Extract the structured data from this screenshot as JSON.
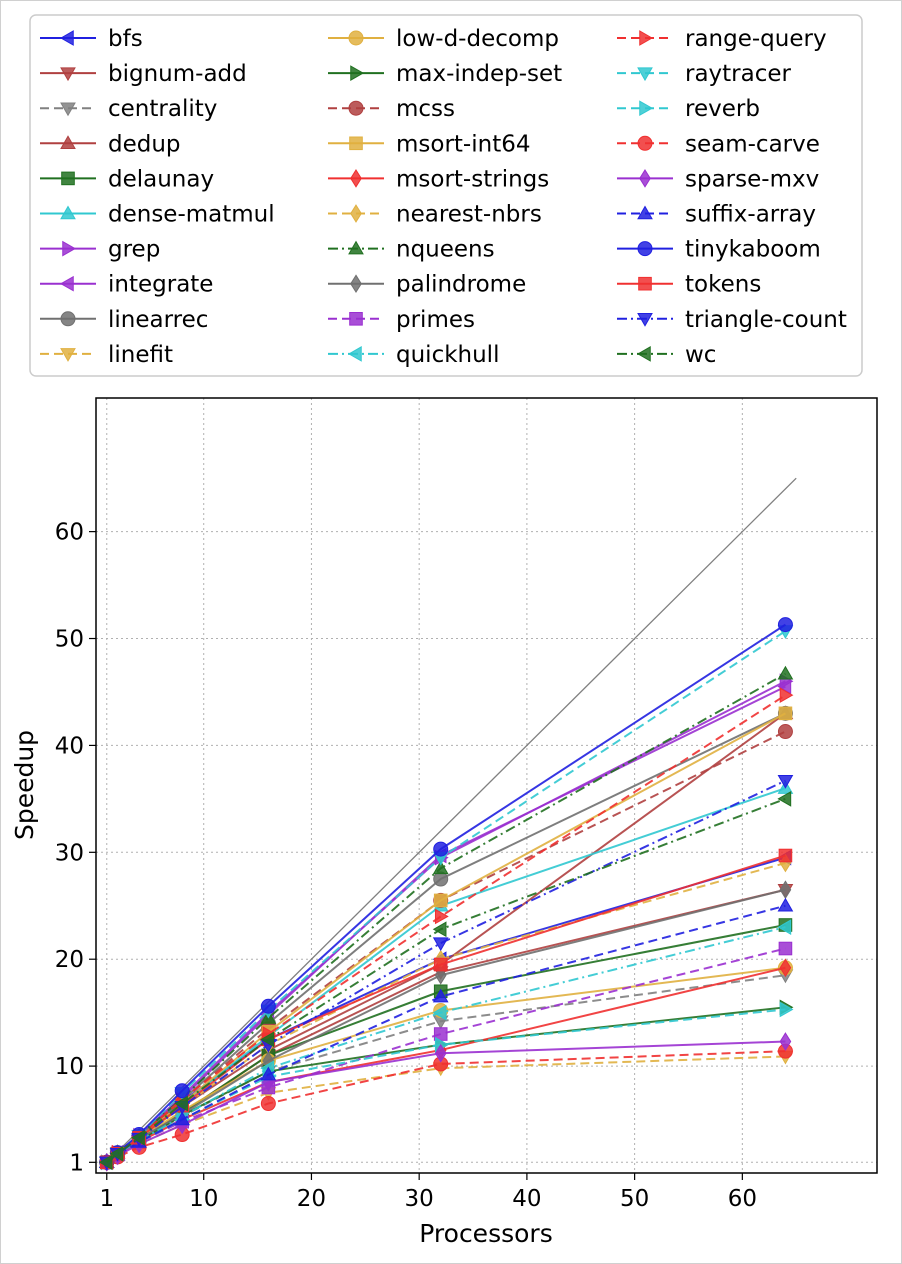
{
  "chart_data": {
    "type": "line",
    "title": "",
    "xlabel": "Processors",
    "ylabel": "Speedup",
    "xlim": [
      0,
      72.5
    ],
    "ylim": [
      0,
      72.5
    ],
    "xticks": [
      1,
      10,
      20,
      30,
      40,
      50,
      60
    ],
    "yticks": [
      1,
      10,
      20,
      30,
      40,
      50,
      60
    ],
    "grid": true,
    "legend_position": "top",
    "legend_columns": 3,
    "x": [
      1,
      2,
      4,
      8,
      16,
      32,
      64
    ],
    "ideal_line": {
      "x": [
        1,
        65
      ],
      "y": [
        1,
        65
      ],
      "color": "#808080"
    },
    "series": [
      {
        "name": "bfs",
        "color": "#2020e0",
        "dash": "solid",
        "marker": "tri-left",
        "values": [
          1,
          1.9,
          3.5,
          6.7,
          12.5,
          20,
          29.5
        ]
      },
      {
        "name": "bignum-add",
        "color": "#b04040",
        "dash": "solid",
        "marker": "tri-down",
        "values": [
          1,
          1.8,
          3.0,
          5.6,
          11.0,
          18.8,
          26.5
        ]
      },
      {
        "name": "centrality",
        "color": "#808080",
        "dash": "dashed",
        "marker": "tri-down",
        "values": [
          1,
          1.7,
          3.0,
          5.3,
          9.5,
          14.2,
          18.5
        ]
      },
      {
        "name": "dedup",
        "color": "#b04040",
        "dash": "solid",
        "marker": "tri-up",
        "values": [
          1,
          1.9,
          3.3,
          6.2,
          11.5,
          19.5,
          43
        ]
      },
      {
        "name": "delaunay",
        "color": "#207020",
        "dash": "solid",
        "marker": "square",
        "values": [
          1,
          1.8,
          3.1,
          5.6,
          11.0,
          17.0,
          23.2
        ]
      },
      {
        "name": "dense-matmul",
        "color": "#30c8d0",
        "dash": "solid",
        "marker": "tri-up",
        "values": [
          1,
          1.9,
          3.4,
          6.5,
          12.8,
          25,
          36
        ]
      },
      {
        "name": "grep",
        "color": "#9a30d0",
        "dash": "solid",
        "marker": "tri-right",
        "values": [
          1,
          1.9,
          3.5,
          7.2,
          15.0,
          29.5,
          46
        ]
      },
      {
        "name": "integrate",
        "color": "#9a30d0",
        "dash": "solid",
        "marker": "tri-left",
        "values": [
          1,
          1.9,
          3.4,
          7.0,
          14.8,
          29.7,
          45.5
        ]
      },
      {
        "name": "linearrec",
        "color": "#707070",
        "dash": "solid",
        "marker": "circle",
        "values": [
          1,
          1.9,
          3.4,
          6.8,
          14.0,
          27.5,
          43
        ]
      },
      {
        "name": "linefit",
        "color": "#e0b040",
        "dash": "dashed",
        "marker": "tri-down",
        "values": [
          1,
          1.6,
          2.7,
          4.5,
          7.5,
          9.8,
          10.9
        ]
      },
      {
        "name": "low-d-decomp",
        "color": "#e0b040",
        "dash": "solid",
        "marker": "circle",
        "values": [
          1,
          1.8,
          3.2,
          5.8,
          10.5,
          15.2,
          19.2
        ]
      },
      {
        "name": "max-indep-set",
        "color": "#207020",
        "dash": "solid",
        "marker": "tri-right",
        "values": [
          1,
          1.8,
          3.0,
          5.4,
          9.5,
          12.0,
          15.5
        ]
      },
      {
        "name": "mcss",
        "color": "#b04040",
        "dash": "dashed",
        "marker": "circle",
        "values": [
          1,
          1.9,
          3.4,
          6.8,
          13.5,
          25.5,
          41.3
        ]
      },
      {
        "name": "msort-int64",
        "color": "#e0b040",
        "dash": "solid",
        "marker": "square",
        "values": [
          1,
          1.8,
          3.3,
          6.5,
          13.2,
          25.5,
          43
        ]
      },
      {
        "name": "msort-strings",
        "color": "#f03030",
        "dash": "solid",
        "marker": "diamond",
        "values": [
          1,
          1.7,
          2.9,
          5.0,
          8.5,
          11.5,
          19.2
        ]
      },
      {
        "name": "nearest-nbrs",
        "color": "#e0b040",
        "dash": "dashed",
        "marker": "diamond",
        "values": [
          1,
          1.8,
          3.3,
          6.2,
          12.0,
          20.0,
          29.0
        ]
      },
      {
        "name": "nqueens",
        "color": "#207020",
        "dash": "dashdot",
        "marker": "tri-up",
        "values": [
          1,
          1.9,
          3.5,
          7.0,
          14.5,
          28.5,
          46.7
        ]
      },
      {
        "name": "palindrome",
        "color": "#707070",
        "dash": "solid",
        "marker": "diamond",
        "values": [
          1,
          1.8,
          3.2,
          5.5,
          10.5,
          18.5,
          26.5
        ]
      },
      {
        "name": "primes",
        "color": "#9a30d0",
        "dash": "dashed",
        "marker": "square",
        "values": [
          1,
          1.7,
          2.9,
          4.8,
          8.0,
          13.0,
          21.0
        ]
      },
      {
        "name": "quickhull",
        "color": "#30c8d0",
        "dash": "dashdot",
        "marker": "tri-left",
        "values": [
          1,
          1.8,
          3.0,
          5.3,
          9.8,
          15.0,
          23.0
        ]
      },
      {
        "name": "range-query",
        "color": "#f03030",
        "dash": "dashed",
        "marker": "tri-right",
        "values": [
          1,
          1.9,
          3.4,
          6.9,
          13.0,
          24.0,
          44.7
        ]
      },
      {
        "name": "raytracer",
        "color": "#30c8d0",
        "dash": "dashed",
        "marker": "tri-down",
        "values": [
          1,
          1.9,
          3.5,
          7.5,
          15.2,
          29.5,
          50.7
        ]
      },
      {
        "name": "reverb",
        "color": "#30c8d0",
        "dash": "dashed",
        "marker": "tri-right",
        "values": [
          1,
          1.7,
          2.9,
          5.0,
          9.0,
          12.0,
          15.3
        ]
      },
      {
        "name": "seam-carve",
        "color": "#f03030",
        "dash": "dashed",
        "marker": "circle",
        "values": [
          1,
          1.5,
          2.4,
          3.6,
          6.5,
          10.2,
          11.4
        ]
      },
      {
        "name": "sparse-mxv",
        "color": "#9a30d0",
        "dash": "solid",
        "marker": "diamond",
        "values": [
          1,
          1.6,
          2.7,
          4.5,
          8.5,
          11.2,
          12.3
        ]
      },
      {
        "name": "suffix-array",
        "color": "#2020e0",
        "dash": "dashed",
        "marker": "tri-up",
        "values": [
          1,
          1.7,
          2.9,
          5.0,
          9.2,
          16.5,
          25.0
        ]
      },
      {
        "name": "tinykaboom",
        "color": "#2020e0",
        "dash": "solid",
        "marker": "circle",
        "values": [
          1,
          1.9,
          3.6,
          7.7,
          15.6,
          30.3,
          51.3
        ]
      },
      {
        "name": "tokens",
        "color": "#f03030",
        "dash": "solid",
        "marker": "square",
        "values": [
          1,
          1.8,
          3.3,
          6.3,
          12.5,
          19.5,
          29.7
        ]
      },
      {
        "name": "triangle-count",
        "color": "#2020e0",
        "dash": "dashdot",
        "marker": "tri-down",
        "values": [
          1,
          1.8,
          3.2,
          6.2,
          12.0,
          21.5,
          36.7
        ]
      },
      {
        "name": "wc",
        "color": "#207020",
        "dash": "dashdot",
        "marker": "tri-left",
        "values": [
          1,
          1.8,
          3.3,
          6.5,
          12.5,
          22.8,
          35.0
        ]
      }
    ]
  }
}
